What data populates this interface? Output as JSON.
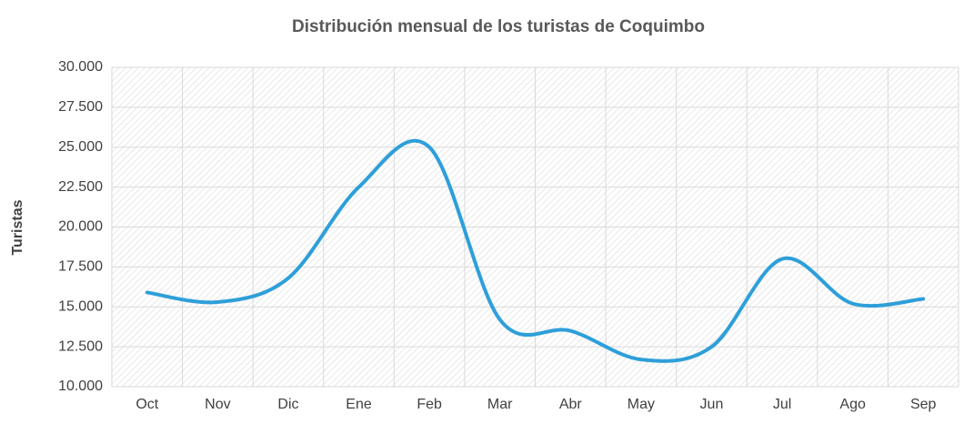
{
  "chart_data": {
    "type": "line",
    "title": "Distribución mensual de los turistas de Coquimbo",
    "y_label": "Turistas",
    "categories": [
      "Oct",
      "Nov",
      "Dic",
      "Ene",
      "Feb",
      "Mar",
      "Abr",
      "May",
      "Jun",
      "Jul",
      "Ago",
      "Sep"
    ],
    "series": [
      {
        "name": "Turistas",
        "color": "#2e9fd9",
        "values": [
          15900,
          15300,
          16800,
          22500,
          25000,
          14200,
          13500,
          11700,
          12500,
          18000,
          15200,
          15500
        ]
      }
    ],
    "ylim": [
      10000,
      30000
    ],
    "yticks": [
      {
        "value": 10000,
        "label": "10.000"
      },
      {
        "value": 12500,
        "label": "12.500"
      },
      {
        "value": 15000,
        "label": "15.000"
      },
      {
        "value": 17500,
        "label": "17.500"
      },
      {
        "value": 20000,
        "label": "20.000"
      },
      {
        "value": 22500,
        "label": "22.500"
      },
      {
        "value": 25000,
        "label": "25.000"
      },
      {
        "value": 27500,
        "label": "27.500"
      },
      {
        "value": 30000,
        "label": "30.000"
      }
    ],
    "grid": true,
    "smooth": true
  }
}
